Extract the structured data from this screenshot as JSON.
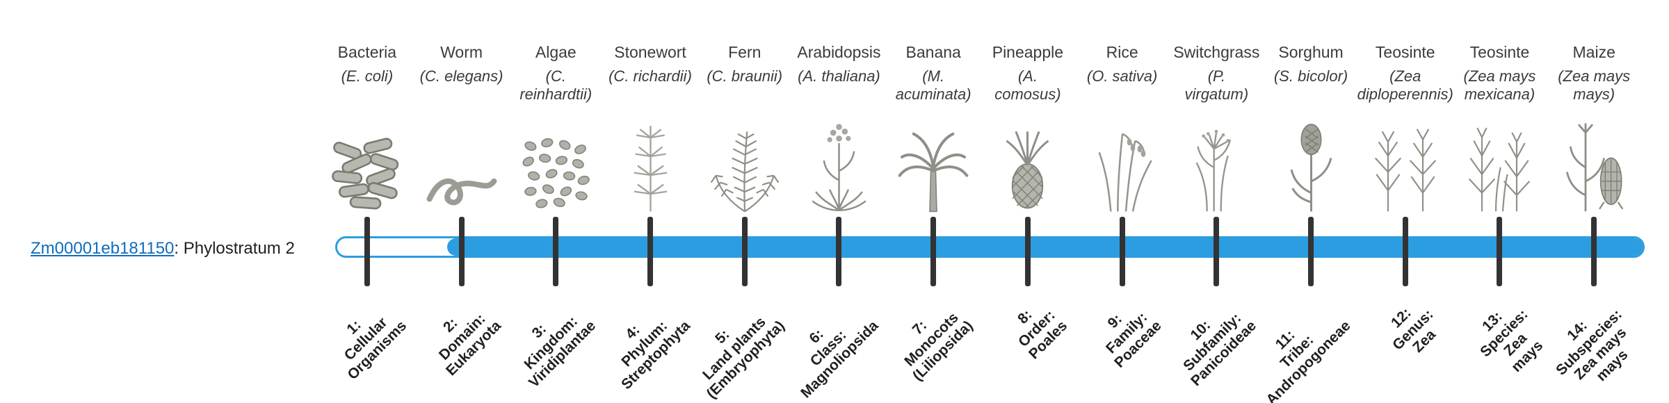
{
  "gene": {
    "link_text": "Zm00001eb181150",
    "suffix": ": Phylostratum 2"
  },
  "colors": {
    "bar": "#2b9de0",
    "bar_track": "#ffffff",
    "tick": "#333333",
    "link": "#0f6cbd",
    "text": "#3b3b3b",
    "label": "#1f1f1f"
  },
  "timeline": {
    "columns": [
      {
        "name": "Bacteria",
        "sci": "(E. coli)",
        "icon": "bacteria-icon",
        "stratum_label": "1:\nCellular\nOrganisms"
      },
      {
        "name": "Worm",
        "sci": "(C. elegans)",
        "icon": "worm-icon",
        "stratum_label": "2:\nDomain:\nEukaryota"
      },
      {
        "name": "Algae",
        "sci": "(C.\nreinhardtii)",
        "icon": "algae-icon",
        "stratum_label": "3:\nKingdom:\nViridiplantae"
      },
      {
        "name": "Stonewort",
        "sci": "(C. richardii)",
        "icon": "stonewort-icon",
        "stratum_label": "4:\nPhylum:\nStreptophyta"
      },
      {
        "name": "Fern",
        "sci": "(C. braunii)",
        "icon": "fern-icon",
        "stratum_label": "5:\nLand plants\n(Embryophyta)"
      },
      {
        "name": "Arabidopsis",
        "sci": "(A. thaliana)",
        "icon": "arabidopsis-icon",
        "stratum_label": "6:\nClass:\nMagnoliopsida"
      },
      {
        "name": "Banana",
        "sci": "(M.\nacuminata)",
        "icon": "banana-icon",
        "stratum_label": "7:\nMonocots\n(Liliopsida)"
      },
      {
        "name": "Pineapple",
        "sci": "(A.\ncomosus)",
        "icon": "pineapple-icon",
        "stratum_label": "8:\nOrder:\nPoales"
      },
      {
        "name": "Rice",
        "sci": "(O. sativa)",
        "icon": "rice-icon",
        "stratum_label": "9:\nFamily:\nPoaceae"
      },
      {
        "name": "Switchgrass",
        "sci": "(P.\nvirgatum)",
        "icon": "switchgrass-icon",
        "stratum_label": "10:\nSubfamily:\nPanicoideae"
      },
      {
        "name": "Sorghum",
        "sci": "(S. bicolor)",
        "icon": "sorghum-icon",
        "stratum_label": "11:\nTribe:\nAndropogoneae"
      },
      {
        "name": "Teosinte",
        "sci": "(Zea\ndiploperennis)",
        "icon": "teosinte-diploperennis-icon",
        "stratum_label": "12:\nGenus:\nZea"
      },
      {
        "name": "Teosinte",
        "sci": "(Zea mays\nmexicana)",
        "icon": "teosinte-mexicana-icon",
        "stratum_label": "13:\nSpecies:\nZea\nmays"
      },
      {
        "name": "Maize",
        "sci": "(Zea mays\nmays)",
        "icon": "maize-icon",
        "stratum_label": "14:\nSubspecies:\nZea mays\nmays"
      }
    ]
  }
}
